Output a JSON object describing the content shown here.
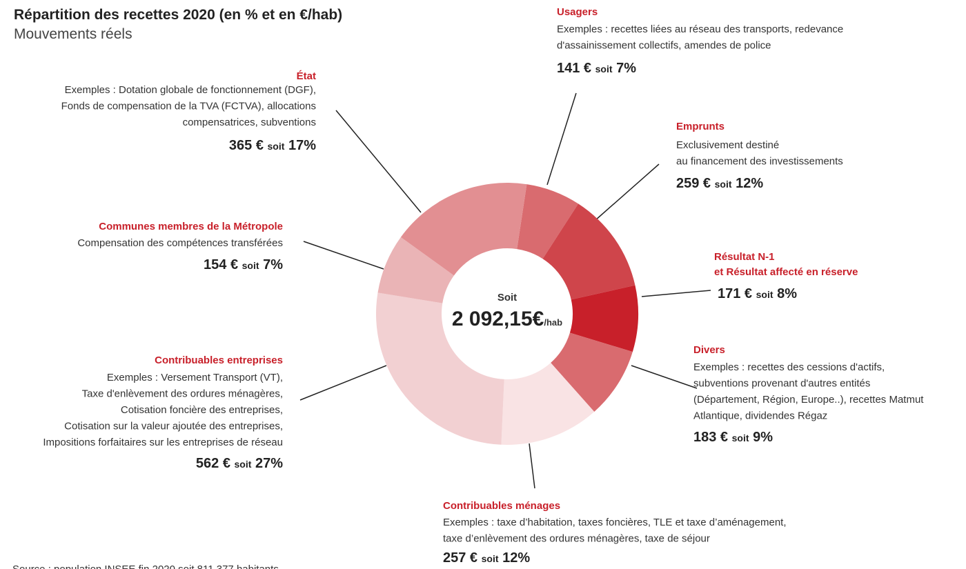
{
  "chart_data": {
    "type": "donut",
    "title": "Répartition des recettes 2020 (en % et en €/hab)",
    "subtitle": "Mouvements réels",
    "center_label": "Soit",
    "center_value": "2 092,15€",
    "center_unit": "/hab",
    "connector": "soit",
    "source": "Source : population INSEE fin 2020 soit 811 377 habitants",
    "categories": [
      "Usagers",
      "Emprunts",
      "Résultat N-1\net Résultat affecté en réserve",
      "Divers",
      "Contribuables ménages",
      "Contribuables entreprises",
      "Communes membres de la Métropole",
      "État"
    ],
    "descriptions": [
      [
        "Exemples : recettes liées au réseau des transports, redevance",
        "d'assainissement collectifs, amendes de police"
      ],
      [
        "Exclusivement destiné",
        "au financement des investissements"
      ],
      [],
      [
        "Exemples : recettes des cessions d'actifs,",
        "subventions provenant d'autres entités",
        "(Département, Région, Europe..), recettes Matmut",
        "Atlantique, dividendes Régaz"
      ],
      [
        "Exemples : taxe d’habitation, taxes foncières, TLE et taxe d’aménagement,",
        "taxe d’enlèvement des ordures ménagères, taxe de séjour"
      ],
      [
        "Exemples : Versement Transport (VT),",
        "Taxe d'enlèvement des ordures ménagères,",
        "Cotisation foncière des entreprises,",
        "Cotisation sur la valeur ajoutée des entreprises,",
        "Impositions forfaitaires sur les entreprises de réseau"
      ],
      [
        "Compensation des compétences transférées"
      ],
      [
        "Exemples : Dotation globale de fonctionnement (DGF),",
        "Fonds de compensation de la TVA (FCTVA), allocations",
        "compensatrices, subventions"
      ]
    ],
    "values": [
      141,
      259,
      171,
      183,
      257,
      562,
      154,
      365
    ],
    "value_labels": [
      "141 €",
      "259 €",
      "171 €",
      "183 €",
      "257 €",
      "562 €",
      "154 €",
      "365 €"
    ],
    "percents": [
      7,
      12,
      8,
      9,
      12,
      27,
      7,
      17
    ],
    "percent_labels": [
      "7%",
      "12%",
      "8%",
      "9%",
      "12%",
      "27%",
      "7%",
      "17%"
    ],
    "colors": [
      "#d96b6f",
      "#cf454b",
      "#c8202a",
      "#d96b6f",
      "#f9e3e4",
      "#f2d0d2",
      "#eab4b6",
      "#e28f92"
    ]
  }
}
